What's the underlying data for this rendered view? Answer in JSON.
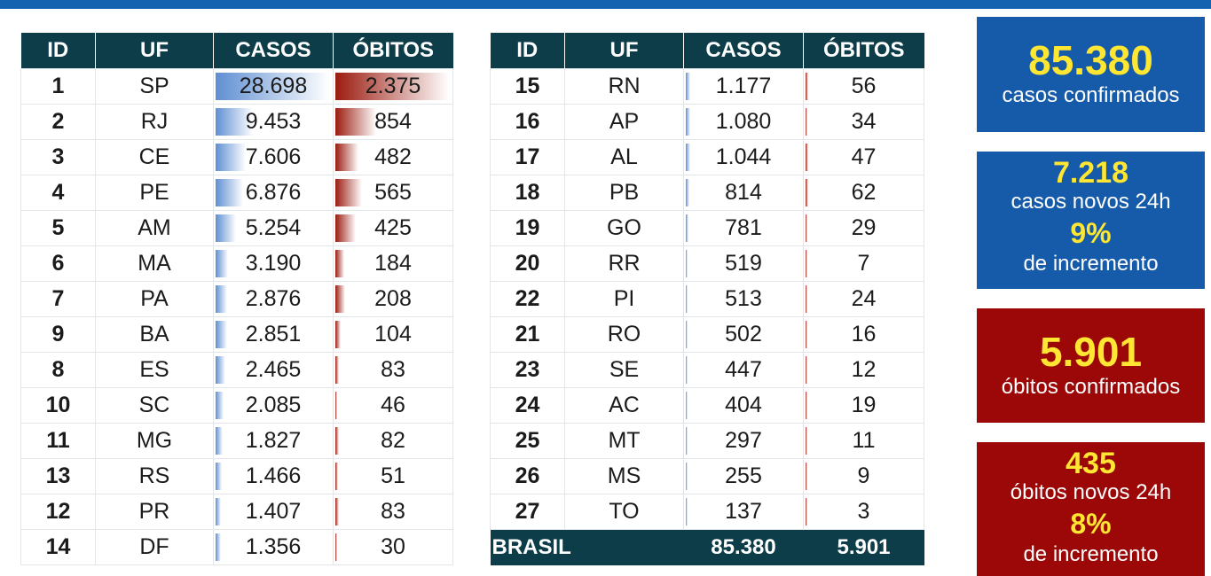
{
  "headers": [
    "ID",
    "UF",
    "CASOS",
    "ÓBITOS"
  ],
  "left_rows": [
    {
      "id": "1",
      "uf": "SP",
      "casos": "28.698",
      "obitos": "2.375",
      "casos_level": 1.0,
      "obitos_level": 1.0
    },
    {
      "id": "2",
      "uf": "RJ",
      "casos": "9.453",
      "obitos": "854",
      "casos_level": 0.329,
      "obitos_level": 0.36
    },
    {
      "id": "3",
      "uf": "CE",
      "casos": "7.606",
      "obitos": "482",
      "casos_level": 0.265,
      "obitos_level": 0.203
    },
    {
      "id": "4",
      "uf": "PE",
      "casos": "6.876",
      "obitos": "565",
      "casos_level": 0.24,
      "obitos_level": 0.238
    },
    {
      "id": "5",
      "uf": "AM",
      "casos": "5.254",
      "obitos": "425",
      "casos_level": 0.183,
      "obitos_level": 0.179
    },
    {
      "id": "6",
      "uf": "MA",
      "casos": "3.190",
      "obitos": "184",
      "casos_level": 0.111,
      "obitos_level": 0.077
    },
    {
      "id": "7",
      "uf": "PA",
      "casos": "2.876",
      "obitos": "208",
      "casos_level": 0.1,
      "obitos_level": 0.088
    },
    {
      "id": "9",
      "uf": "BA",
      "casos": "2.851",
      "obitos": "104",
      "casos_level": 0.099,
      "obitos_level": 0.044
    },
    {
      "id": "8",
      "uf": "ES",
      "casos": "2.465",
      "obitos": "83",
      "casos_level": 0.086,
      "obitos_level": 0.035
    },
    {
      "id": "10",
      "uf": "SC",
      "casos": "2.085",
      "obitos": "46",
      "casos_level": 0.073,
      "obitos_level": 0.019
    },
    {
      "id": "11",
      "uf": "MG",
      "casos": "1.827",
      "obitos": "82",
      "casos_level": 0.064,
      "obitos_level": 0.035
    },
    {
      "id": "13",
      "uf": "RS",
      "casos": "1.466",
      "obitos": "51",
      "casos_level": 0.051,
      "obitos_level": 0.021
    },
    {
      "id": "12",
      "uf": "PR",
      "casos": "1.407",
      "obitos": "83",
      "casos_level": 0.049,
      "obitos_level": 0.035
    },
    {
      "id": "14",
      "uf": "DF",
      "casos": "1.356",
      "obitos": "30",
      "casos_level": 0.047,
      "obitos_level": 0.013
    }
  ],
  "right_rows": [
    {
      "id": "15",
      "uf": "RN",
      "casos": "1.177",
      "obitos": "56",
      "casos_level": 0.041,
      "obitos_level": 0.024
    },
    {
      "id": "16",
      "uf": "AP",
      "casos": "1.080",
      "obitos": "34",
      "casos_level": 0.038,
      "obitos_level": 0.014
    },
    {
      "id": "17",
      "uf": "AL",
      "casos": "1.044",
      "obitos": "47",
      "casos_level": 0.036,
      "obitos_level": 0.02
    },
    {
      "id": "18",
      "uf": "PB",
      "casos": "814",
      "obitos": "62",
      "casos_level": 0.028,
      "obitos_level": 0.026
    },
    {
      "id": "19",
      "uf": "GO",
      "casos": "781",
      "obitos": "29",
      "casos_level": 0.027,
      "obitos_level": 0.012
    },
    {
      "id": "20",
      "uf": "RR",
      "casos": "519",
      "obitos": "7",
      "casos_level": 0.018,
      "obitos_level": 0.003
    },
    {
      "id": "22",
      "uf": "PI",
      "casos": "513",
      "obitos": "24",
      "casos_level": 0.018,
      "obitos_level": 0.01
    },
    {
      "id": "21",
      "uf": "RO",
      "casos": "502",
      "obitos": "16",
      "casos_level": 0.017,
      "obitos_level": 0.007
    },
    {
      "id": "23",
      "uf": "SE",
      "casos": "447",
      "obitos": "12",
      "casos_level": 0.016,
      "obitos_level": 0.005
    },
    {
      "id": "24",
      "uf": "AC",
      "casos": "404",
      "obitos": "19",
      "casos_level": 0.014,
      "obitos_level": 0.008
    },
    {
      "id": "25",
      "uf": "MT",
      "casos": "297",
      "obitos": "11",
      "casos_level": 0.01,
      "obitos_level": 0.005
    },
    {
      "id": "26",
      "uf": "MS",
      "casos": "255",
      "obitos": "9",
      "casos_level": 0.009,
      "obitos_level": 0.004
    },
    {
      "id": "27",
      "uf": "TO",
      "casos": "137",
      "obitos": "3",
      "casos_level": 0.005,
      "obitos_level": 0.001
    }
  ],
  "total": {
    "label": "BRASIL",
    "casos": "85.380",
    "obitos": "5.901"
  },
  "cards": {
    "confirmed": {
      "value": "85.380",
      "label": "casos confirmados"
    },
    "new_cases": {
      "value": "7.218",
      "label": "casos novos 24h",
      "pct": "9%",
      "pct_label": "de incremento"
    },
    "deaths": {
      "value": "5.901",
      "label": "óbitos confirmados"
    },
    "new_deaths": {
      "value": "435",
      "label": "óbitos novos 24h",
      "pct": "8%",
      "pct_label": "de incremento"
    }
  },
  "colors": {
    "header_bg": "#0e3d4a",
    "cases_bar": "#5f8fd3",
    "deaths_bar": "#9b1c10",
    "card_blue": "#155ba9",
    "card_red": "#9c0708",
    "highlight_text": "#ffe632",
    "top_bar": "#1463b0"
  }
}
